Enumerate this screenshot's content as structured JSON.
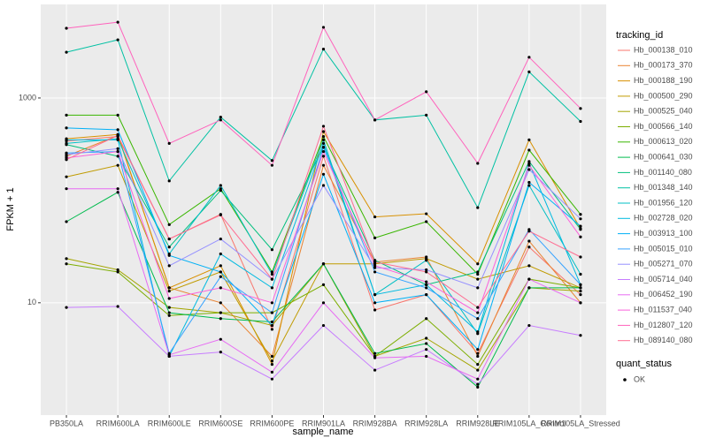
{
  "chart_data": {
    "type": "line",
    "log_y": true,
    "grid": true,
    "x_label": "sample_name",
    "y_label": "FPKM + 1",
    "legend_title": "tracking_id",
    "shape_legend_title": "quant_status",
    "shape_legend_labels": [
      "OK"
    ],
    "categories": [
      "PB350LA",
      "RRIM600LA",
      "RRIM600LE",
      "RRIM600SE",
      "RRIM600PE",
      "RRIM901LA",
      "RRIM928BA",
      "RRIM928LA",
      "RRIM928LE",
      "RRIM105LA_Control",
      "RRIM105LA_Stressed"
    ],
    "ylim": [
      0.8,
      8200
    ],
    "yticks": [
      10,
      1000
    ],
    "series": [
      {
        "name": "Hb_000138_010",
        "color": "#F8766D",
        "values": [
          380,
          420,
          42,
          73,
          5.5,
          270,
          8.5,
          12,
          3.2,
          35,
          12
        ]
      },
      {
        "name": "Hb_000173_370",
        "color": "#EA8331",
        "values": [
          270,
          430,
          14,
          10,
          3,
          220,
          25,
          28,
          3.0,
          40,
          10
        ]
      },
      {
        "name": "Hb_000188_190",
        "color": "#D89000",
        "values": [
          400,
          440,
          14,
          23,
          2.5,
          470,
          69,
          74,
          24,
          390,
          53
        ]
      },
      {
        "name": "Hb_000500_290",
        "color": "#C09B00",
        "values": [
          170,
          220,
          13,
          20,
          2.7,
          24,
          24,
          27,
          17,
          23,
          14
        ]
      },
      {
        "name": "Hb_000525_040",
        "color": "#A3A500",
        "values": [
          27,
          21,
          9,
          8,
          6,
          24,
          3,
          4.5,
          2.2,
          14,
          13
        ]
      },
      {
        "name": "Hb_000566_140",
        "color": "#7CAE00",
        "values": [
          24,
          20,
          7.5,
          8,
          8,
          15,
          3,
          7,
          2.5,
          17,
          14
        ]
      },
      {
        "name": "Hb_000613_020",
        "color": "#39B600",
        "values": [
          680,
          680,
          58,
          130,
          20,
          420,
          43,
          62,
          19,
          310,
          73
        ]
      },
      {
        "name": "Hb_000641_030",
        "color": "#00BB4E",
        "values": [
          62,
          120,
          8,
          7,
          6.5,
          24,
          3.2,
          4,
          1.5,
          14,
          14
        ]
      },
      {
        "name": "Hb_001140_080",
        "color": "#00BF7D",
        "values": [
          350,
          270,
          35,
          125,
          33,
          330,
          26,
          15,
          20,
          240,
          52
        ]
      },
      {
        "name": "Hb_001348_140",
        "color": "#00C1A3",
        "values": [
          2800,
          3700,
          155,
          650,
          245,
          3000,
          610,
          680,
          85,
          1800,
          590
        ]
      },
      {
        "name": "Hb_001956_120",
        "color": "#00BFC4",
        "values": [
          360,
          400,
          30,
          140,
          19,
          390,
          12,
          26,
          5,
          140,
          19
        ]
      },
      {
        "name": "Hb_002728_020",
        "color": "#00BAE0",
        "values": [
          390,
          390,
          3,
          30,
          14,
          360,
          12,
          15,
          5.2,
          230,
          15
        ]
      },
      {
        "name": "Hb_003913_100",
        "color": "#00B0F6",
        "values": [
          510,
          490,
          29,
          20,
          6,
          180,
          10,
          12,
          3.5,
          150,
          56
        ]
      },
      {
        "name": "Hb_005015_010",
        "color": "#35A2FF",
        "values": [
          290,
          300,
          3.2,
          18,
          8,
          330,
          20,
          14,
          7,
          52,
          15
        ]
      },
      {
        "name": "Hb_005271_070",
        "color": "#9590FF",
        "values": [
          280,
          320,
          23,
          42,
          17,
          140,
          22,
          21,
          14,
          200,
          66
        ]
      },
      {
        "name": "Hb_005714_040",
        "color": "#C77CFF",
        "values": [
          9,
          9.2,
          3,
          3.3,
          1.8,
          6,
          2.2,
          3.5,
          1.6,
          6,
          4.8
        ]
      },
      {
        "name": "Hb_006452_190",
        "color": "#E76BF3",
        "values": [
          130,
          130,
          3.1,
          4.4,
          2.1,
          10,
          2.9,
          3.0,
          1.8,
          17,
          10
        ]
      },
      {
        "name": "Hb_011537_040",
        "color": "#FA62DB",
        "values": [
          260,
          300,
          11,
          14,
          10,
          300,
          23,
          16,
          8,
          220,
          44
        ]
      },
      {
        "name": "Hb_012807_120",
        "color": "#FF62BC",
        "values": [
          4800,
          5500,
          360,
          610,
          220,
          4900,
          610,
          1150,
          230,
          2500,
          790
        ]
      },
      {
        "name": "Hb_089140_080",
        "color": "#FF6C91",
        "values": [
          250,
          430,
          42,
          72,
          17,
          530,
          25,
          20,
          9,
          50,
          28
        ]
      }
    ]
  }
}
